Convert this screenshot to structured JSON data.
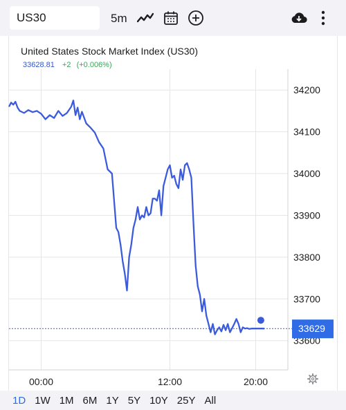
{
  "toolbar": {
    "symbol": "US30",
    "interval": "5m",
    "icons": [
      "line-chart-icon",
      "calendar-icon",
      "add-circle-icon",
      "cloud-download-icon",
      "more-vertical-icon"
    ]
  },
  "header": {
    "title": "United States Stock Market Index (US30)",
    "last": "33628.81",
    "change": "+2",
    "change_pct": "(+0.006%)"
  },
  "price_tag": "33629",
  "settings_icon": "gear-icon",
  "timeframes": [
    "1D",
    "1W",
    "1M",
    "6M",
    "1Y",
    "5Y",
    "10Y",
    "25Y",
    "All"
  ],
  "active_timeframe": "1D",
  "colors": {
    "line": "#3b5bdb",
    "price_tag": "#2f6ce5",
    "positive": "#34a853",
    "active_tab": "#2f6ce5"
  },
  "chart_data": {
    "type": "line",
    "title": "United States Stock Market Index (US30)",
    "xlabel": "",
    "ylabel": "",
    "x_ticks": [
      "00:00",
      "12:00",
      "20:00"
    ],
    "x_tick_hours": [
      0,
      12,
      20
    ],
    "y_ticks": [
      33600,
      33700,
      33800,
      33900,
      34000,
      34100,
      34200
    ],
    "ylim": [
      33530,
      34250
    ],
    "xlim_hours": [
      -3,
      23
    ],
    "last_value": 33629,
    "grid": true,
    "series": [
      {
        "hours": [
          -3.0,
          -2.8,
          -2.6,
          -2.4,
          -2.2,
          -2.0,
          -1.6,
          -1.2,
          -0.8,
          -0.4,
          0.0,
          0.4,
          0.8,
          1.2,
          1.6,
          2.0,
          2.4,
          2.8,
          3.0,
          3.2,
          3.4,
          3.6,
          3.8,
          4.2,
          4.6,
          5.0,
          5.4,
          5.8,
          6.2,
          6.6,
          7.0,
          7.2,
          7.4,
          7.6,
          7.8,
          8.0,
          8.2,
          8.4,
          8.6,
          8.8,
          9.0,
          9.2,
          9.4,
          9.6,
          9.8,
          10.0,
          10.2,
          10.4,
          10.6,
          10.8,
          11.0,
          11.2,
          11.4,
          11.6,
          11.8,
          12.0,
          12.2,
          12.4,
          12.6,
          12.8,
          13.0,
          13.2,
          13.4,
          13.6,
          13.8,
          14.0,
          14.2,
          14.4,
          14.6,
          14.8,
          15.0,
          15.2,
          15.4,
          15.6,
          15.8,
          16.0,
          16.2,
          16.4,
          16.6,
          16.8,
          17.0,
          17.2,
          17.4,
          17.6,
          17.8,
          18.0,
          18.2,
          18.4,
          18.6,
          18.8,
          19.0,
          19.2,
          19.4,
          19.6,
          19.8,
          20.0,
          20.2,
          20.4,
          20.6,
          20.8
        ],
        "values": [
          34160,
          34170,
          34165,
          34172,
          34158,
          34150,
          34145,
          34152,
          34147,
          34150,
          34143,
          34130,
          34140,
          34133,
          34150,
          34138,
          34145,
          34160,
          34175,
          34140,
          34158,
          34130,
          34148,
          34120,
          34110,
          34098,
          34075,
          34060,
          34010,
          34000,
          33870,
          33860,
          33830,
          33790,
          33760,
          33720,
          33800,
          33830,
          33870,
          33890,
          33920,
          33890,
          33900,
          33895,
          33920,
          33900,
          33905,
          33940,
          33940,
          33935,
          33960,
          33900,
          33970,
          33990,
          34010,
          34020,
          33990,
          33995,
          33975,
          33965,
          34010,
          33985,
          34020,
          34025,
          34010,
          33990,
          33880,
          33780,
          33730,
          33710,
          33670,
          33700,
          33660,
          33640,
          33620,
          33640,
          33615,
          33625,
          33632,
          33622,
          33638,
          33625,
          33640,
          33620,
          33630,
          33640,
          33652,
          33640,
          33620,
          33632,
          33629,
          33630,
          33628,
          33629,
          33629,
          33629,
          33629,
          33629,
          33629,
          33629
        ]
      }
    ]
  }
}
